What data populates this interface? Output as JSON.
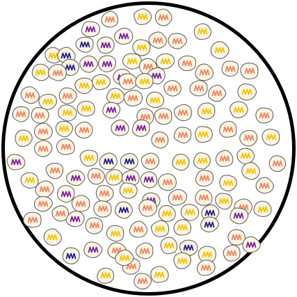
{
  "diagram": {
    "dish": {
      "border_color": "#000000",
      "fill_color": "#ffffff"
    },
    "cell_style": {
      "body_color": "#fdf5e4",
      "outline_color": "#555555"
    },
    "wave_colors": {
      "yellow": "#f2c400",
      "salmon": "#f08462",
      "purple": "#7a1fa2",
      "navy": "#1f1f8f"
    },
    "cells": [
      {
        "id": 1,
        "type": "purple"
      },
      {
        "id": 2,
        "type": "salmon"
      },
      {
        "id": 3,
        "type": "yellow"
      },
      {
        "id": 4,
        "type": "salmon"
      },
      {
        "id": 5,
        "type": "yellow"
      },
      {
        "id": 6,
        "type": "purple"
      },
      {
        "id": 7,
        "type": "navy"
      },
      {
        "id": 8,
        "type": "purple"
      },
      {
        "id": 9,
        "type": "salmon"
      },
      {
        "id": 10,
        "type": "salmon"
      },
      {
        "id": 11,
        "type": "yellow"
      },
      {
        "id": 12,
        "type": "yellow"
      },
      {
        "id": 13,
        "type": "yellow"
      },
      {
        "id": 14,
        "type": "navy"
      },
      {
        "id": 15,
        "type": "navy"
      },
      {
        "id": 16,
        "type": "purple"
      },
      {
        "id": 17,
        "type": "purple"
      },
      {
        "id": 18,
        "type": "yellow"
      },
      {
        "id": 19,
        "type": "salmon"
      },
      {
        "id": 20,
        "type": "yellow"
      },
      {
        "id": 21,
        "type": "salmon"
      },
      {
        "id": 22,
        "type": "yellow"
      },
      {
        "id": 23,
        "type": "salmon"
      },
      {
        "id": 24,
        "type": "purple"
      },
      {
        "id": 25,
        "type": "purple"
      },
      {
        "id": 26,
        "type": "salmon"
      },
      {
        "id": 27,
        "type": "salmon"
      },
      {
        "id": 28,
        "type": "salmon"
      },
      {
        "id": 29,
        "type": "yellow"
      },
      {
        "id": 30,
        "type": "yellow"
      },
      {
        "id": 31,
        "type": "salmon"
      },
      {
        "id": 32,
        "type": "yellow"
      },
      {
        "id": 33,
        "type": "salmon"
      },
      {
        "id": 34,
        "type": "salmon"
      },
      {
        "id": 35,
        "type": "salmon"
      },
      {
        "id": 36,
        "type": "yellow"
      },
      {
        "id": 37,
        "type": "salmon"
      },
      {
        "id": 38,
        "type": "yellow"
      },
      {
        "id": 39,
        "type": "salmon"
      },
      {
        "id": 40,
        "type": "yellow"
      },
      {
        "id": 41,
        "type": "salmon"
      },
      {
        "id": 42,
        "type": "yellow"
      },
      {
        "id": 43,
        "type": "salmon"
      },
      {
        "id": 44,
        "type": "salmon"
      },
      {
        "id": 45,
        "type": "yellow"
      },
      {
        "id": 46,
        "type": "yellow"
      },
      {
        "id": 47,
        "type": "purple"
      },
      {
        "id": 48,
        "type": "salmon"
      },
      {
        "id": 49,
        "type": "salmon"
      },
      {
        "id": 50,
        "type": "salmon"
      },
      {
        "id": 51,
        "type": "yellow"
      },
      {
        "id": 52,
        "type": "yellow"
      },
      {
        "id": 53,
        "type": "salmon"
      },
      {
        "id": 54,
        "type": "yellow"
      },
      {
        "id": 55,
        "type": "salmon"
      },
      {
        "id": 56,
        "type": "yellow"
      },
      {
        "id": 57,
        "type": "salmon"
      },
      {
        "id": 58,
        "type": "purple"
      },
      {
        "id": 59,
        "type": "purple"
      },
      {
        "id": 60,
        "type": "salmon"
      },
      {
        "id": 61,
        "type": "salmon"
      },
      {
        "id": 62,
        "type": "yellow"
      },
      {
        "id": 63,
        "type": "salmon"
      },
      {
        "id": 64,
        "type": "salmon"
      },
      {
        "id": 65,
        "type": "yellow"
      },
      {
        "id": 66,
        "type": "salmon"
      },
      {
        "id": 67,
        "type": "salmon"
      },
      {
        "id": 68,
        "type": "yellow"
      },
      {
        "id": 69,
        "type": "navy"
      },
      {
        "id": 70,
        "type": "navy"
      },
      {
        "id": 71,
        "type": "salmon"
      },
      {
        "id": 72,
        "type": "yellow"
      },
      {
        "id": 73,
        "type": "yellow"
      },
      {
        "id": 74,
        "type": "salmon"
      },
      {
        "id": 75,
        "type": "yellow"
      },
      {
        "id": 76,
        "type": "salmon"
      },
      {
        "id": 77,
        "type": "purple"
      },
      {
        "id": 78,
        "type": "yellow"
      },
      {
        "id": 79,
        "type": "salmon"
      },
      {
        "id": 80,
        "type": "purple"
      },
      {
        "id": 81,
        "type": "salmon"
      },
      {
        "id": 82,
        "type": "yellow"
      },
      {
        "id": 83,
        "type": "purple"
      },
      {
        "id": 84,
        "type": "purple"
      },
      {
        "id": 85,
        "type": "salmon"
      },
      {
        "id": 86,
        "type": "salmon"
      },
      {
        "id": 87,
        "type": "yellow"
      },
      {
        "id": 88,
        "type": "yellow"
      },
      {
        "id": 89,
        "type": "salmon"
      },
      {
        "id": 90,
        "type": "salmon"
      },
      {
        "id": 91,
        "type": "purple"
      },
      {
        "id": 92,
        "type": "salmon"
      },
      {
        "id": 93,
        "type": "salmon"
      },
      {
        "id": 94,
        "type": "yellow"
      },
      {
        "id": 95,
        "type": "purple"
      },
      {
        "id": 96,
        "type": "salmon"
      },
      {
        "id": 97,
        "type": "salmon"
      },
      {
        "id": 98,
        "type": "yellow"
      },
      {
        "id": 99,
        "type": "salmon"
      },
      {
        "id": 100,
        "type": "yellow"
      },
      {
        "id": 101,
        "type": "salmon"
      },
      {
        "id": 102,
        "type": "salmon"
      },
      {
        "id": 103,
        "type": "salmon"
      },
      {
        "id": 104,
        "type": "navy"
      },
      {
        "id": 105,
        "type": "salmon"
      },
      {
        "id": 106,
        "type": "yellow"
      },
      {
        "id": 107,
        "type": "yellow"
      },
      {
        "id": 108,
        "type": "navy"
      },
      {
        "id": 109,
        "type": "purple"
      },
      {
        "id": 110,
        "type": "salmon"
      },
      {
        "id": 111,
        "type": "purple"
      },
      {
        "id": 112,
        "type": "salmon"
      },
      {
        "id": 113,
        "type": "yellow"
      },
      {
        "id": 114,
        "type": "salmon"
      },
      {
        "id": 115,
        "type": "yellow"
      },
      {
        "id": 116,
        "type": "yellow"
      },
      {
        "id": 117,
        "type": "navy"
      },
      {
        "id": 118,
        "type": "salmon"
      },
      {
        "id": 119,
        "type": "yellow"
      },
      {
        "id": 120,
        "type": "navy"
      },
      {
        "id": 121,
        "type": "purple"
      },
      {
        "id": 122,
        "type": "salmon"
      },
      {
        "id": 123,
        "type": "salmon"
      },
      {
        "id": 124,
        "type": "yellow"
      },
      {
        "id": 125,
        "type": "navy"
      },
      {
        "id": 126,
        "type": "yellow"
      },
      {
        "id": 127,
        "type": "salmon"
      },
      {
        "id": 128,
        "type": "purple"
      },
      {
        "id": 129,
        "type": "salmon"
      },
      {
        "id": 130,
        "type": "yellow"
      },
      {
        "id": 131,
        "type": "salmon"
      },
      {
        "id": 132,
        "type": "yellow"
      },
      {
        "id": 133,
        "type": "yellow"
      },
      {
        "id": 134,
        "type": "salmon"
      },
      {
        "id": 135,
        "type": "yellow"
      },
      {
        "id": 136,
        "type": "yellow"
      },
      {
        "id": 137,
        "type": "yellow"
      }
    ]
  }
}
